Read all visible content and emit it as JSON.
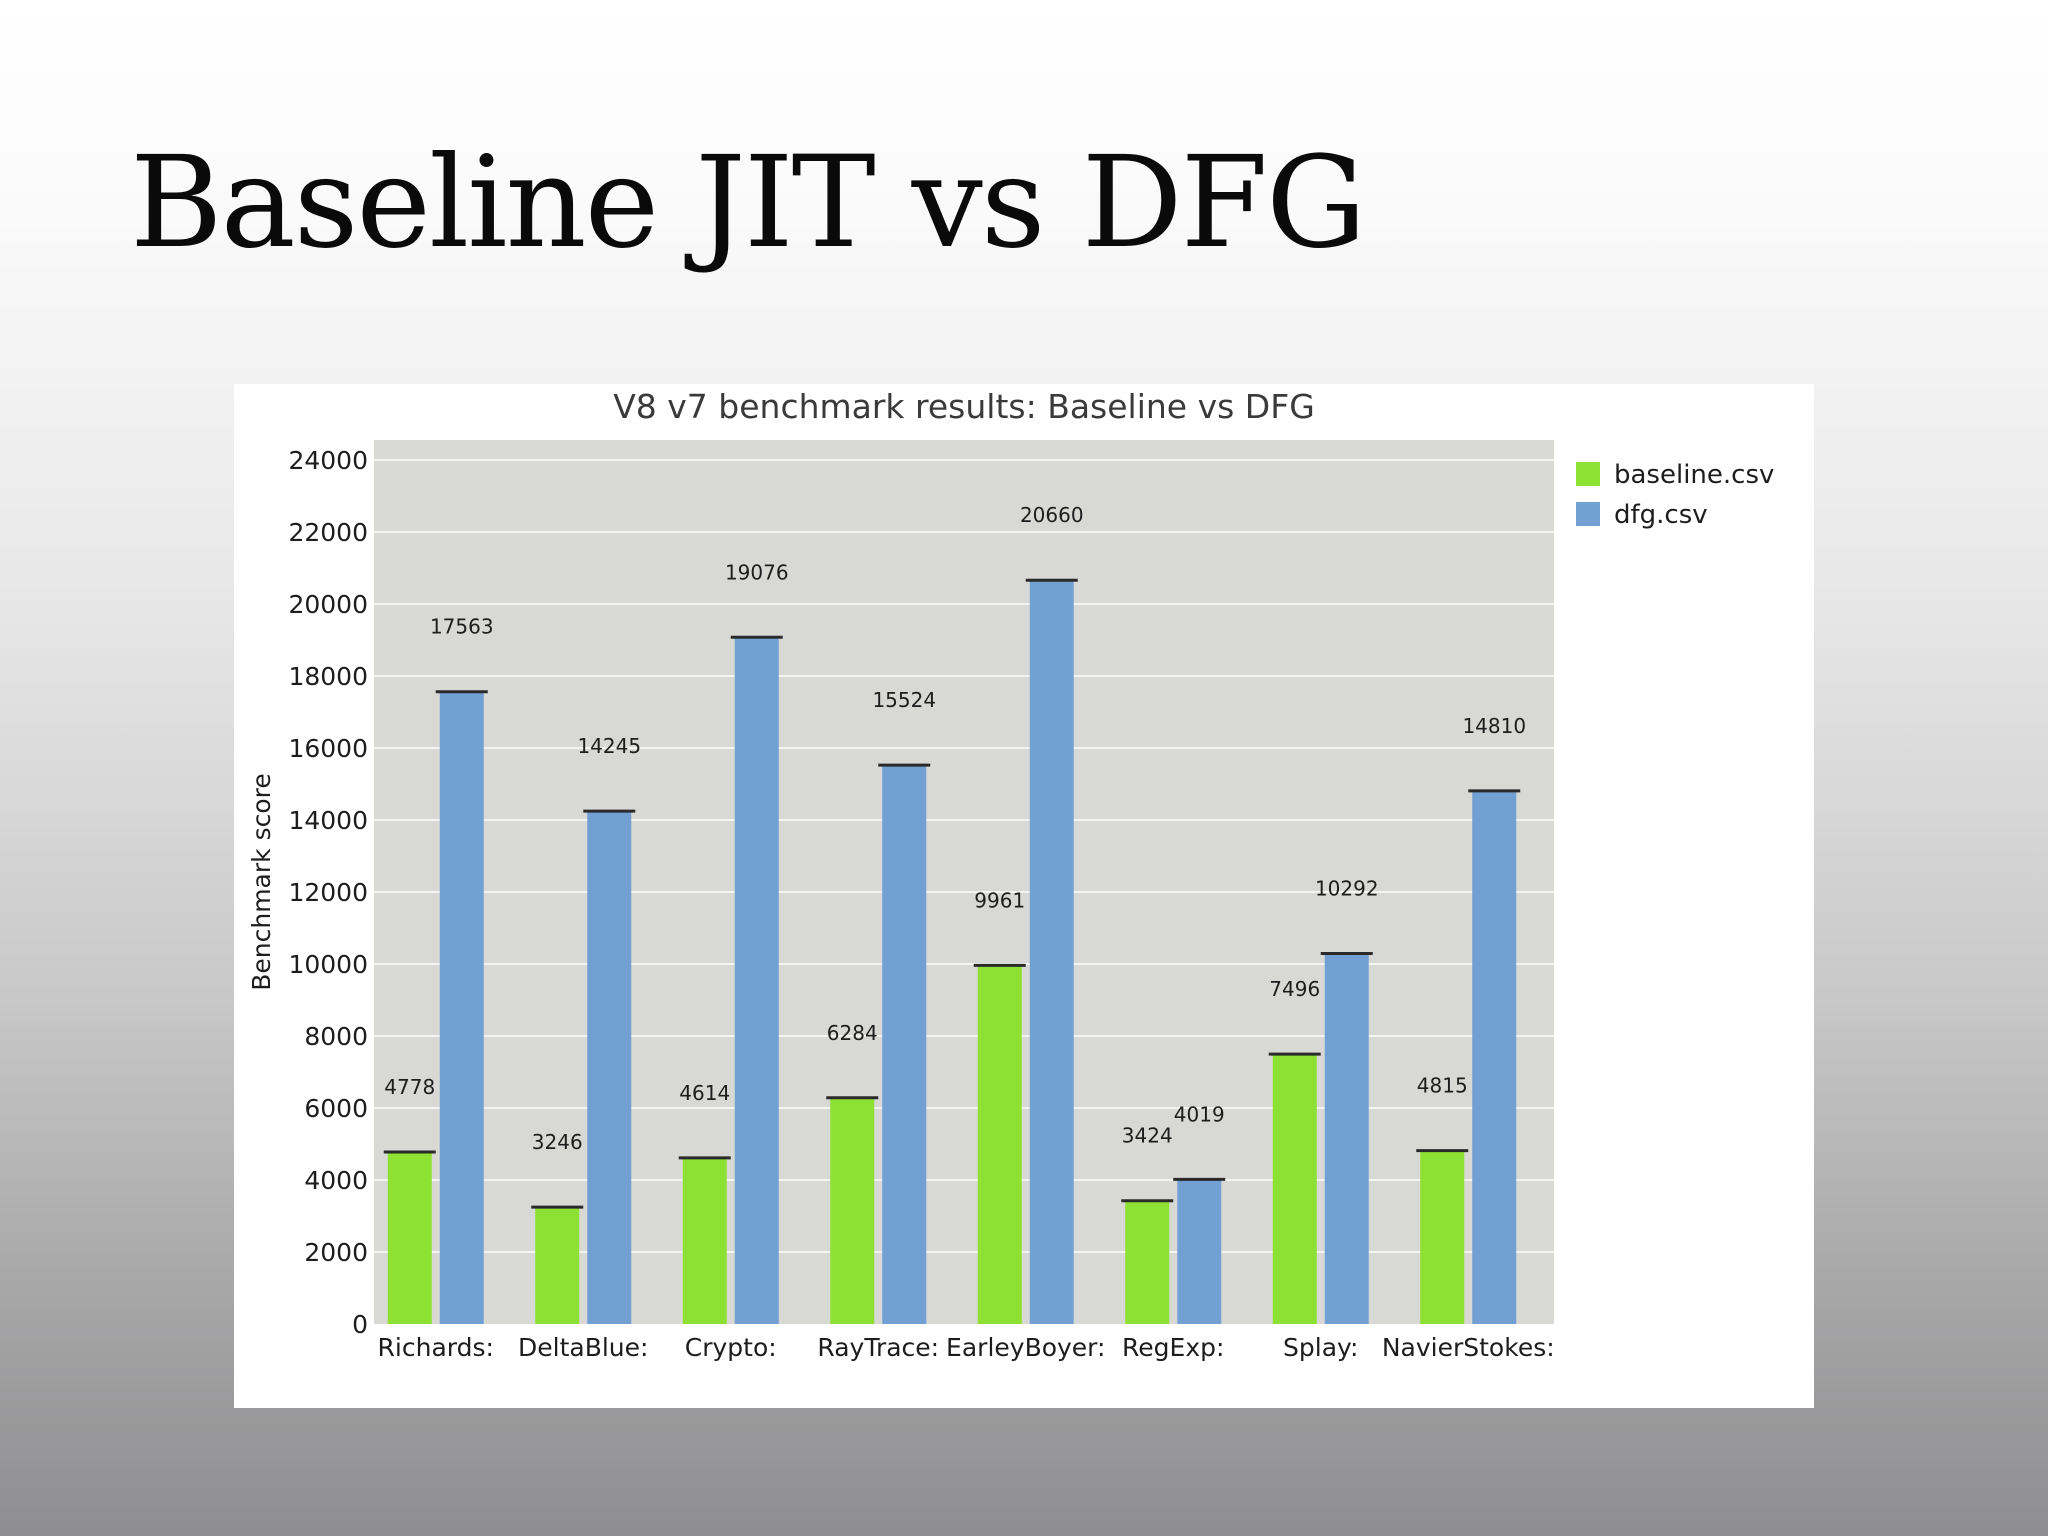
{
  "slide": {
    "title": "Baseline JIT vs DFG"
  },
  "chart_data": {
    "type": "bar",
    "title": "V8 v7 benchmark results: Baseline vs DFG",
    "xlabel": "",
    "ylabel": "Benchmark score",
    "ylim": [
      0,
      24000
    ],
    "yticks": [
      0,
      2000,
      4000,
      6000,
      8000,
      10000,
      12000,
      14000,
      16000,
      18000,
      20000,
      22000,
      24000
    ],
    "categories": [
      "Richards:",
      "DeltaBlue:",
      "Crypto:",
      "RayTrace:",
      "EarleyBoyer:",
      "RegExp:",
      "Splay:",
      "NavierStokes:"
    ],
    "series": [
      {
        "name": "baseline.csv",
        "color": "#8de132",
        "values": [
          4778,
          3246,
          4614,
          6284,
          9961,
          3424,
          7496,
          4815
        ]
      },
      {
        "name": "dfg.csv",
        "color": "#72a0d3",
        "values": [
          17563,
          14245,
          19076,
          15524,
          20660,
          4019,
          10292,
          14810
        ]
      }
    ],
    "grid": true,
    "plot_background": "#d8d8d4",
    "legend": "top-right",
    "data_labels": true
  }
}
